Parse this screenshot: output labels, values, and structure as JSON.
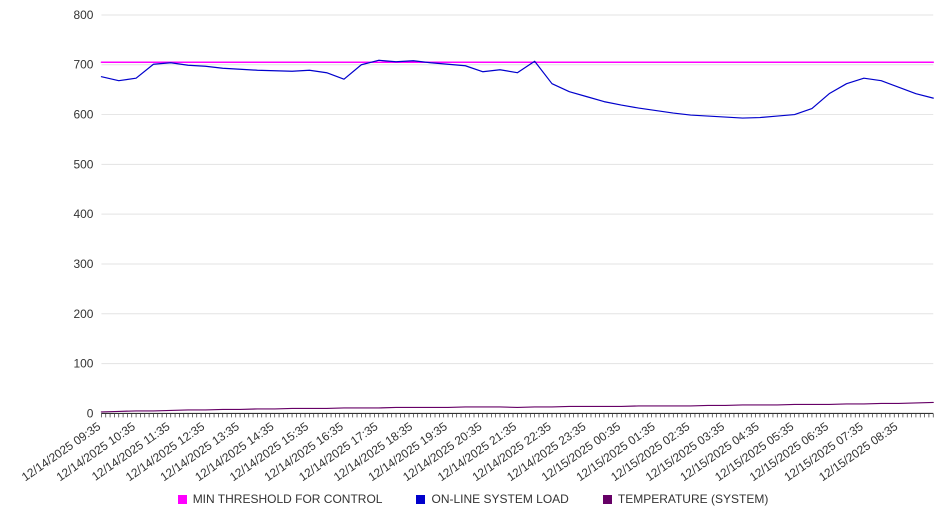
{
  "chart_data": {
    "type": "line",
    "title": "",
    "xlabel": "",
    "ylabel": "",
    "ylim": [
      0,
      800
    ],
    "y_ticks": [
      0,
      100,
      200,
      300,
      400,
      500,
      600,
      700,
      800
    ],
    "grid": true,
    "legend_position": "bottom",
    "x_labels": [
      "12/14/2025 09:35",
      "12/14/2025 10:35",
      "12/14/2025 11:35",
      "12/14/2025 12:35",
      "12/14/2025 13:35",
      "12/14/2025 14:35",
      "12/14/2025 15:35",
      "12/14/2025 16:35",
      "12/14/2025 17:35",
      "12/14/2025 18:35",
      "12/14/2025 19:35",
      "12/14/2025 20:35",
      "12/14/2025 21:35",
      "12/14/2025 22:35",
      "12/14/2025 23:35",
      "12/15/2025 00:35",
      "12/15/2025 01:35",
      "12/15/2025 02:35",
      "12/15/2025 03:35",
      "12/15/2025 04:35",
      "12/15/2025 05:35",
      "12/15/2025 06:35",
      "12/15/2025 07:35",
      "12/15/2025 08:35"
    ],
    "series": [
      {
        "name": "MIN THRESHOLD FOR CONTROL",
        "color": "#ff00ff",
        "width": 1.5,
        "values": [
          705,
          705
        ]
      },
      {
        "name": "TEMPERATURE (SYSTEM)",
        "color": "#660066",
        "width": 1.2,
        "values": [
          3,
          4,
          5,
          5,
          6,
          7,
          7,
          8,
          8,
          9,
          9,
          10,
          10,
          10,
          11,
          11,
          11,
          12,
          12,
          12,
          12,
          13,
          13,
          13,
          12,
          13,
          13,
          14,
          14,
          14,
          14,
          15,
          15,
          15,
          15,
          16,
          16,
          17,
          17,
          17,
          18,
          18,
          18,
          19,
          19,
          20,
          20,
          21,
          22
        ]
      },
      {
        "name": "ON-LINE SYSTEM LOAD",
        "color": "#0000cc",
        "width": 1.2,
        "values": [
          676,
          668,
          673,
          701,
          704,
          699,
          697,
          693,
          691,
          689,
          688,
          687,
          689,
          684,
          671,
          700,
          709,
          706,
          708,
          704,
          701,
          698,
          686,
          690,
          684,
          707,
          662,
          646,
          636,
          626,
          619,
          613,
          608,
          603,
          599,
          597,
          595,
          593,
          594,
          597,
          600,
          612,
          642,
          662,
          673,
          668,
          655,
          642,
          633
        ]
      }
    ],
    "axis_color": "#333333",
    "grid_color": "#e3e3e3",
    "tick_label_color": "#333333"
  },
  "legend": {
    "order": [
      0,
      2,
      1
    ]
  }
}
